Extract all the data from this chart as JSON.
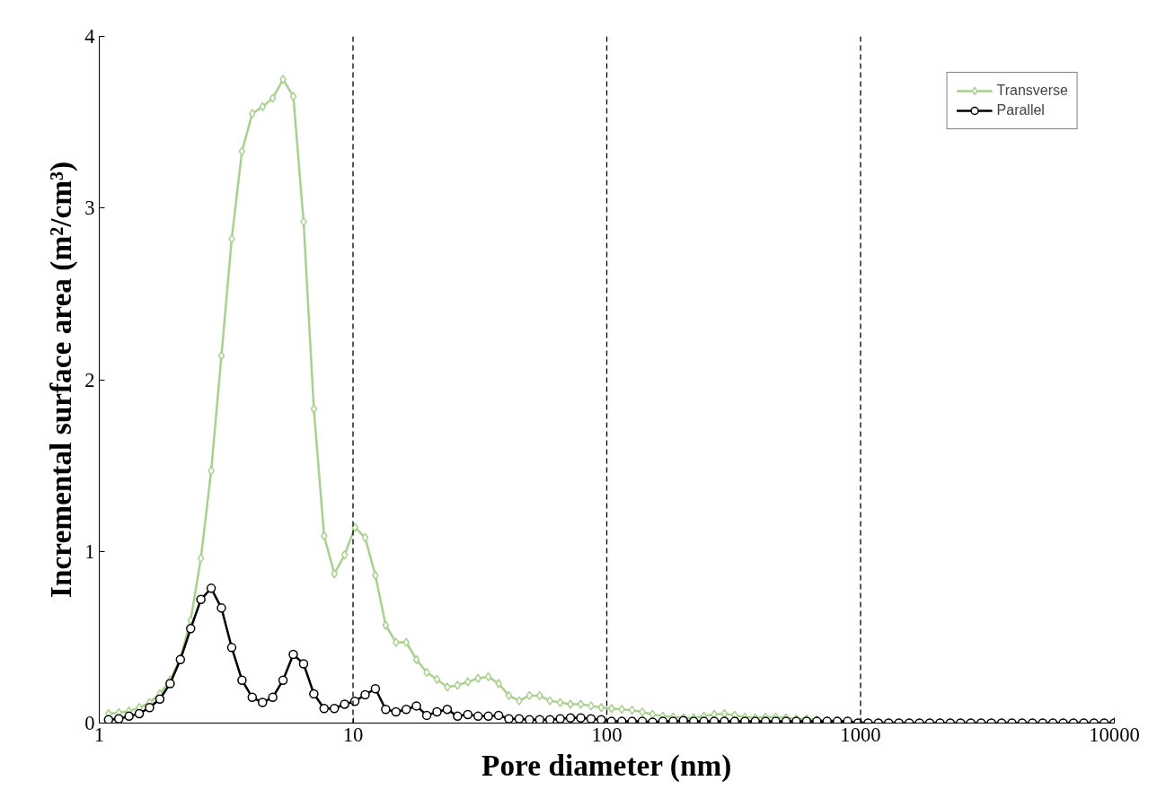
{
  "chart_data": {
    "type": "line",
    "xlabel": "Pore diameter (nm)",
    "ylabel": "Incremental surface area (m²/cm³)",
    "log": "x",
    "xlim": [
      1,
      10000
    ],
    "xticks": [
      1,
      10,
      100,
      1000,
      10000
    ],
    "ylim": [
      0,
      4
    ],
    "yticks": [
      0,
      1,
      2,
      3,
      4
    ],
    "grid": false,
    "legend": "top right",
    "ref_lines": [
      {
        "axis": "x",
        "value": 10,
        "color": "#000000",
        "line_style": "dashed"
      },
      {
        "axis": "x",
        "value": 100,
        "color": "#000000",
        "line_style": "dashed"
      },
      {
        "axis": "x",
        "value": 1000,
        "color": "#000000",
        "line_style": "dashed"
      }
    ],
    "x": [
      1.088,
      1.194,
      1.31,
      1.438,
      1.578,
      1.733,
      1.902,
      2.088,
      2.292,
      2.515,
      2.761,
      3.03,
      3.326,
      3.651,
      4.007,
      4.399,
      4.828,
      5.299,
      5.816,
      6.385,
      7.008,
      7.691,
      8.442,
      9.267,
      10.17,
      11.16,
      12.25,
      13.45,
      14.76,
      16.2,
      17.78,
      19.52,
      21.42,
      23.52,
      25.81,
      28.33,
      31.1,
      34.14,
      37.47,
      41.13,
      45.14,
      49.55,
      54.38,
      59.69,
      65.52,
      71.92,
      78.94,
      86.65,
      95.09,
      104.4,
      114.6,
      125.8,
      138.0,
      151.5,
      166.3,
      182.5,
      200.3,
      219.9,
      241.3,
      264.9,
      290.8,
      319.2,
      350.3,
      384.5,
      422.0,
      463.3,
      508.5,
      558.1,
      612.6,
      672.4,
      738.0,
      810.1,
      889.1,
      975.9,
      1071,
      1176,
      1290,
      1416,
      1555,
      1707,
      1873,
      2056,
      2257,
      2477,
      2719,
      2985,
      3276,
      3596,
      3947,
      4332,
      4755,
      5219,
      5728,
      6287,
      6901,
      7575,
      8314,
      9125,
      10000
    ],
    "series": [
      {
        "name": "Transverse",
        "color": "#a9d18e",
        "marker": "diamond",
        "values": [
          0.055,
          0.06,
          0.07,
          0.09,
          0.12,
          0.17,
          0.25,
          0.38,
          0.6,
          0.96,
          1.47,
          2.14,
          2.82,
          3.33,
          3.55,
          3.59,
          3.64,
          3.75,
          3.65,
          2.92,
          1.83,
          1.09,
          0.87,
          0.98,
          1.14,
          1.08,
          0.86,
          0.57,
          0.47,
          0.47,
          0.37,
          0.295,
          0.254,
          0.21,
          0.22,
          0.24,
          0.26,
          0.27,
          0.23,
          0.16,
          0.13,
          0.16,
          0.16,
          0.13,
          0.12,
          0.11,
          0.11,
          0.1,
          0.09,
          0.085,
          0.08,
          0.075,
          0.065,
          0.05,
          0.04,
          0.035,
          0.03,
          0.03,
          0.04,
          0.05,
          0.055,
          0.045,
          0.035,
          0.03,
          0.035,
          0.035,
          0.03,
          0.025,
          0.025,
          0.02,
          0.015,
          0.015,
          0.01,
          0.005,
          0,
          0,
          0,
          0,
          0,
          0,
          0,
          0,
          0,
          0,
          0,
          0,
          0,
          0,
          0,
          0,
          0,
          0,
          0,
          0,
          0,
          0,
          0,
          0,
          0
        ]
      },
      {
        "name": "Parallel",
        "color": "#000000",
        "marker": "circle",
        "values": [
          0.02,
          0.025,
          0.04,
          0.055,
          0.09,
          0.14,
          0.23,
          0.37,
          0.55,
          0.72,
          0.785,
          0.67,
          0.44,
          0.25,
          0.15,
          0.12,
          0.15,
          0.25,
          0.4,
          0.345,
          0.17,
          0.085,
          0.085,
          0.11,
          0.127,
          0.165,
          0.2,
          0.08,
          0.065,
          0.08,
          0.1,
          0.045,
          0.065,
          0.08,
          0.04,
          0.05,
          0.04,
          0.04,
          0.045,
          0.025,
          0.025,
          0.02,
          0.02,
          0.02,
          0.025,
          0.03,
          0.03,
          0.025,
          0.02,
          0.01,
          0.01,
          0.01,
          0.01,
          0.005,
          0.01,
          0.01,
          0.015,
          0.01,
          0.01,
          0.01,
          0.01,
          0.01,
          0.01,
          0.01,
          0.01,
          0.01,
          0.01,
          0.01,
          0.01,
          0.01,
          0.01,
          0.01,
          0.01,
          0,
          0,
          0,
          0,
          0,
          0,
          0,
          0,
          0,
          0,
          0,
          0,
          0,
          0,
          0,
          0,
          0,
          0,
          0,
          0,
          0,
          0,
          0,
          0,
          0,
          0
        ]
      }
    ]
  }
}
